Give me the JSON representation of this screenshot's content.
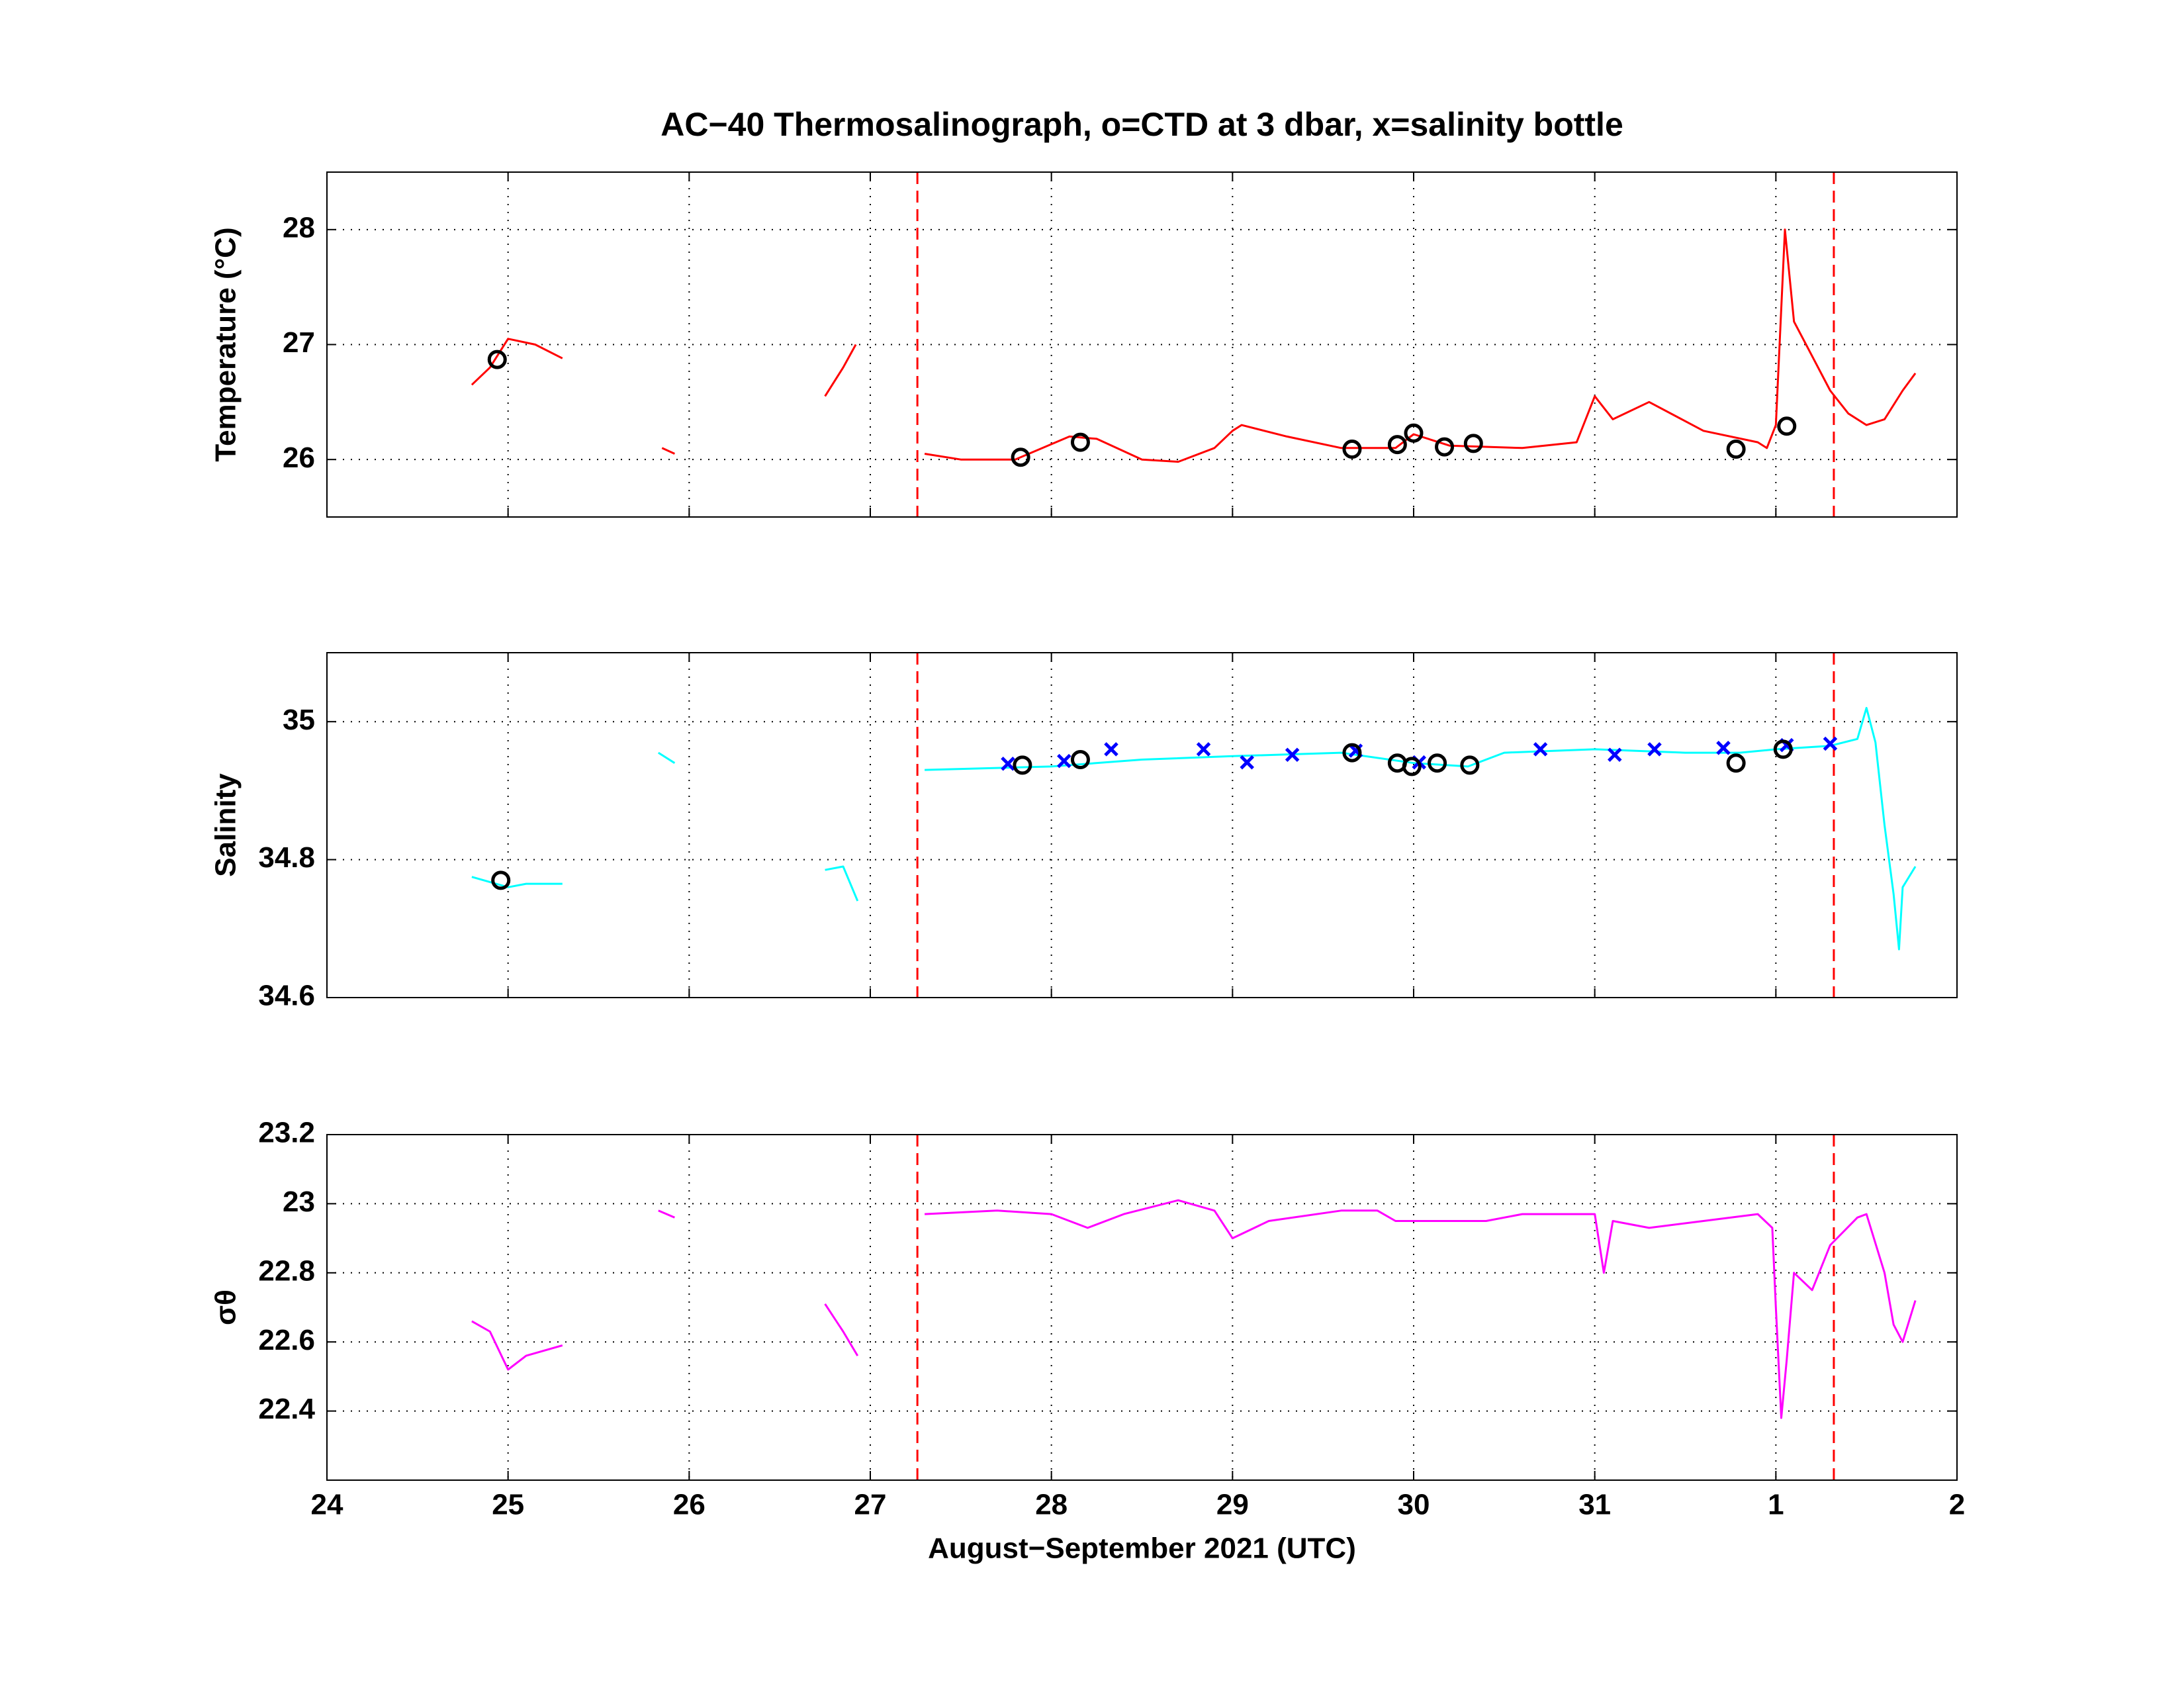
{
  "chart_data": [
    {
      "type": "line",
      "title": "AC−40 Thermosalinograph, o=CTD at 3 dbar, x=salinity bottle",
      "ylabel": "Temperature (°C)",
      "xlim": [
        24,
        33
      ],
      "xticks": [
        24,
        25,
        26,
        27,
        28,
        29,
        30,
        31,
        32,
        33
      ],
      "show_xtick_labels": false,
      "ylim": [
        25.5,
        28.5
      ],
      "yticks": [
        26,
        27,
        28
      ],
      "grid": true,
      "vlines": [
        27.26,
        32.32
      ],
      "vline_color": "#ff0000",
      "series": [
        {
          "color": "#ff0000",
          "marker": "line",
          "x": [
            24.8,
            24.9,
            25.0,
            25.15,
            25.3,
            null,
            25.85,
            25.92,
            null,
            26.75,
            26.85,
            26.92,
            null,
            27.3,
            27.5,
            27.8,
            28.1,
            28.25,
            28.5,
            28.7,
            28.9,
            29.0,
            29.05,
            29.3,
            29.6,
            29.9,
            30.0,
            30.2,
            30.6,
            30.9,
            31.0,
            31.1,
            31.3,
            31.6,
            31.9,
            31.95,
            32.0,
            32.05,
            32.1,
            32.2,
            32.3,
            32.4,
            32.5,
            32.6,
            32.7,
            32.77
          ],
          "values": [
            26.65,
            26.8,
            27.05,
            27.0,
            26.88,
            null,
            26.1,
            26.05,
            null,
            26.55,
            26.8,
            27.0,
            null,
            26.05,
            26.0,
            26.0,
            26.2,
            26.18,
            26.0,
            25.98,
            26.1,
            26.25,
            26.3,
            26.2,
            26.1,
            26.1,
            26.22,
            26.12,
            26.1,
            26.15,
            26.55,
            26.35,
            26.5,
            26.25,
            26.15,
            26.1,
            26.3,
            28.0,
            27.2,
            26.9,
            26.6,
            26.4,
            26.3,
            26.35,
            26.6,
            26.75
          ]
        },
        {
          "color": "#000000",
          "marker": "o",
          "x": [
            24.94,
            27.83,
            28.16,
            29.66,
            29.91,
            30.0,
            30.17,
            30.33,
            31.78,
            32.06
          ],
          "values": [
            26.87,
            26.02,
            26.15,
            26.09,
            26.13,
            26.23,
            26.11,
            26.14,
            26.09,
            26.29
          ]
        }
      ]
    },
    {
      "type": "line",
      "ylabel": "Salinity",
      "xlim": [
        24,
        33
      ],
      "xticks": [
        24,
        25,
        26,
        27,
        28,
        29,
        30,
        31,
        32,
        33
      ],
      "show_xtick_labels": false,
      "ylim": [
        34.6,
        35.1
      ],
      "yticks": [
        34.6,
        34.8,
        35
      ],
      "grid": true,
      "vlines": [
        27.26,
        32.32
      ],
      "vline_color": "#ff0000",
      "series": [
        {
          "color": "#00ffff",
          "marker": "line",
          "x": [
            24.8,
            25.0,
            25.1,
            25.3,
            null,
            25.83,
            25.92,
            null,
            26.75,
            26.85,
            26.93,
            null,
            27.3,
            28.0,
            28.5,
            29.0,
            29.6,
            30.0,
            30.3,
            30.5,
            31.0,
            31.5,
            31.8,
            32.0,
            32.3,
            32.45,
            32.5,
            32.55,
            32.6,
            32.65,
            32.68,
            32.7,
            32.77
          ],
          "values": [
            34.775,
            34.76,
            34.765,
            34.765,
            null,
            34.955,
            34.94,
            null,
            34.785,
            34.79,
            34.74,
            null,
            34.93,
            34.935,
            34.945,
            34.95,
            34.955,
            34.94,
            34.935,
            34.955,
            34.96,
            34.955,
            34.955,
            34.96,
            34.965,
            34.975,
            35.02,
            34.97,
            34.85,
            34.75,
            34.67,
            34.76,
            34.79
          ]
        },
        {
          "color": "#0000ff",
          "marker": "x",
          "x": [
            27.76,
            28.07,
            28.33,
            28.84,
            29.08,
            29.33,
            29.68,
            30.03,
            30.7,
            31.11,
            31.33,
            31.71,
            32.06,
            32.3
          ],
          "values": [
            34.939,
            34.943,
            34.96,
            34.96,
            34.941,
            34.952,
            34.958,
            34.941,
            34.96,
            34.952,
            34.96,
            34.962,
            34.966,
            34.968
          ]
        },
        {
          "color": "#000000",
          "marker": "o",
          "x": [
            24.96,
            27.84,
            28.16,
            29.66,
            29.91,
            29.99,
            30.13,
            30.31,
            31.78,
            32.04
          ],
          "values": [
            34.77,
            34.937,
            34.945,
            34.955,
            34.94,
            34.935,
            34.94,
            34.937,
            34.94,
            34.96
          ]
        }
      ]
    },
    {
      "type": "line",
      "ylabel": "σθ",
      "xlabel": "August−September 2021 (UTC)",
      "xlim": [
        24,
        33
      ],
      "xticks": [
        24,
        25,
        26,
        27,
        28,
        29,
        30,
        31,
        {
          "value": 32,
          "label": "1"
        },
        {
          "value": 33,
          "label": "2"
        }
      ],
      "show_xtick_labels": true,
      "ylim": [
        22.2,
        23.2
      ],
      "yticks": [
        22.4,
        22.6,
        22.8,
        23,
        23.2
      ],
      "grid": true,
      "vlines": [
        27.26,
        32.32
      ],
      "vline_color": "#ff0000",
      "series": [
        {
          "color": "#ff00ff",
          "marker": "line",
          "x": [
            24.8,
            24.9,
            25.0,
            25.1,
            25.3,
            null,
            25.83,
            25.92,
            null,
            26.75,
            26.85,
            26.93,
            null,
            27.3,
            27.7,
            28.0,
            28.2,
            28.4,
            28.7,
            28.9,
            29.0,
            29.2,
            29.6,
            29.8,
            29.9,
            30.4,
            30.6,
            31.0,
            31.05,
            31.1,
            31.3,
            31.6,
            31.9,
            31.98,
            32.0,
            32.03,
            32.06,
            32.1,
            32.2,
            32.3,
            32.45,
            32.5,
            32.6,
            32.65,
            32.7,
            32.77
          ],
          "values": [
            22.66,
            22.63,
            22.52,
            22.56,
            22.59,
            null,
            22.98,
            22.96,
            null,
            22.71,
            22.63,
            22.56,
            null,
            22.97,
            22.98,
            22.97,
            22.93,
            22.97,
            23.01,
            22.98,
            22.9,
            22.95,
            22.98,
            22.98,
            22.95,
            22.95,
            22.97,
            22.97,
            22.8,
            22.95,
            22.93,
            22.95,
            22.97,
            22.93,
            22.7,
            22.38,
            22.55,
            22.8,
            22.75,
            22.88,
            22.96,
            22.97,
            22.8,
            22.65,
            22.6,
            22.72
          ]
        }
      ]
    }
  ]
}
